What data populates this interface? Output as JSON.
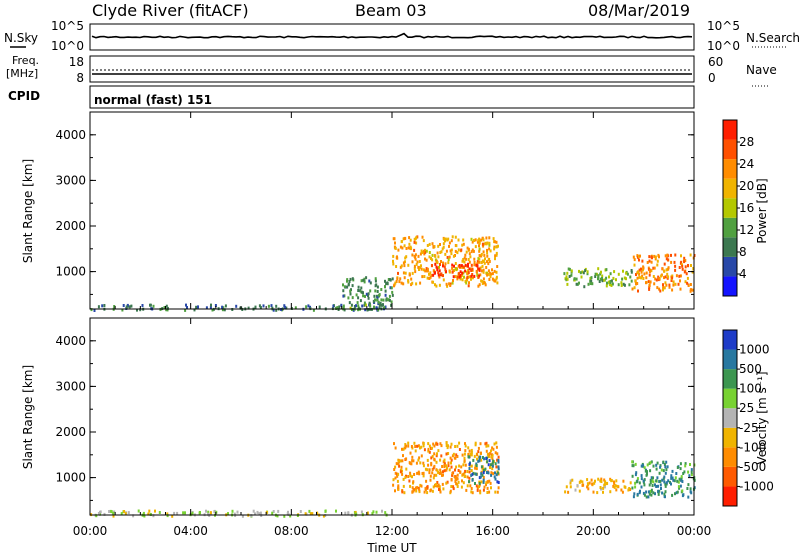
{
  "header": {
    "station": "Clyde River (fitACF)",
    "beam": "Beam 03",
    "date": "08/Mar/2019"
  },
  "noise_panel": {
    "left_label": "N.Sky",
    "left_ticks": [
      "10^5",
      "10^0"
    ],
    "right_ticks": [
      "10^5",
      "10^0"
    ],
    "right_label": "N.Search"
  },
  "freq_panel": {
    "left_label_line1": "Freq.",
    "left_label_line2": "[MHz]",
    "left_ticks": [
      "18",
      "8"
    ],
    "right_ticks": [
      "60",
      "0"
    ],
    "right_label": "Nave"
  },
  "cpid_panel": {
    "label": "CPID",
    "program": "normal (fast) 151"
  },
  "colors": {
    "power_scale": [
      "#1414ff",
      "#2848a8",
      "#3c7850",
      "#50a040",
      "#b4c800",
      "#f0b400",
      "#ff8c00",
      "#ff5000",
      "#ff1e00"
    ],
    "velocity_scale": [
      "#ff1e00",
      "#ff5a00",
      "#ff8c00",
      "#f0b400",
      "#b4b4b4",
      "#78d232",
      "#3c9650",
      "#2878a0",
      "#1e3cc8"
    ]
  },
  "chart_data": [
    {
      "type": "heatmap",
      "name": "power",
      "ylabel": "Slant Range [km]",
      "yticks": [
        "1000",
        "2000",
        "3000",
        "4000"
      ],
      "ylim": [
        180,
        4500
      ],
      "colorbar_label": "Power [dB]",
      "colorbar_ticks": [
        "4",
        "8",
        "12",
        "16",
        "20",
        "24",
        "28"
      ],
      "colorbar_range": [
        0,
        30
      ],
      "echo_regions": [
        {
          "t": [
            0,
            12
          ],
          "range_km": [
            180,
            300
          ],
          "value": 8
        },
        {
          "t": [
            10,
            12
          ],
          "range_km": [
            180,
            900
          ],
          "value": 10
        },
        {
          "t": [
            12,
            16.2
          ],
          "range_km": [
            700,
            1800
          ],
          "value": 20
        },
        {
          "t": [
            13.5,
            15.5
          ],
          "range_km": [
            900,
            1200
          ],
          "value": 28
        },
        {
          "t": [
            18.8,
            21.5
          ],
          "range_km": [
            700,
            1100
          ],
          "value": 12
        },
        {
          "t": [
            21.5,
            24
          ],
          "range_km": [
            600,
            1400
          ],
          "value": 22
        }
      ]
    },
    {
      "type": "heatmap",
      "name": "velocity",
      "ylabel": "Slant Range [km]",
      "yticks": [
        "1000",
        "2000",
        "3000",
        "4000"
      ],
      "ylim": [
        180,
        4500
      ],
      "colorbar_label": "Velocity [m s⁻¹]",
      "colorbar_ticks": [
        "1000",
        "500",
        "100",
        "25",
        "-25",
        "-100",
        "-500",
        "-1000"
      ],
      "colorbar_range": [
        -1000,
        1000
      ],
      "echo_regions": [
        {
          "t": [
            0,
            12
          ],
          "range_km": [
            180,
            300
          ],
          "value": 50
        },
        {
          "t": [
            12,
            16.2
          ],
          "range_km": [
            700,
            1800
          ],
          "value": -400
        },
        {
          "t": [
            15,
            16.2
          ],
          "range_km": [
            900,
            1500
          ],
          "value": 600
        },
        {
          "t": [
            18.8,
            21.5
          ],
          "range_km": [
            700,
            1000
          ],
          "value": -300
        },
        {
          "t": [
            21.5,
            24
          ],
          "range_km": [
            600,
            1400
          ],
          "value": 500
        }
      ]
    }
  ],
  "xaxis": {
    "ticks": [
      "00:00",
      "04:00",
      "08:00",
      "12:00",
      "16:00",
      "20:00",
      "00:00"
    ],
    "label": "Time UT",
    "range_hours": [
      0,
      24
    ]
  }
}
